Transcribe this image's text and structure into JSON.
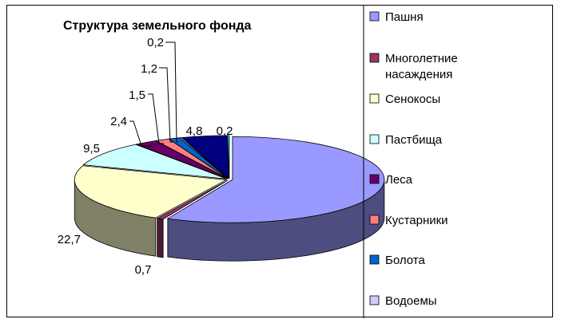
{
  "chart_data": {
    "type": "pie",
    "style": "3d-exploded",
    "title": "Структура земельного фонда",
    "legend_position": "right",
    "slices": [
      {
        "name": "Пашня",
        "value": 57.3,
        "color": "#9999ff"
      },
      {
        "name": "Многолетние насаждения",
        "value": 0.7,
        "color": "#993366"
      },
      {
        "name": "Сенокосы",
        "value": 22.7,
        "color": "#ffffcc"
      },
      {
        "name": "Пастбища",
        "value": 9.5,
        "color": "#ccffff"
      },
      {
        "name": "Леса",
        "value": 2.4,
        "color": "#660066"
      },
      {
        "name": "Кустарники",
        "value": 1.5,
        "color": "#ff8080"
      },
      {
        "name": "Болота",
        "value": 1.2,
        "color": "#0066cc"
      },
      {
        "name": "Водоемы",
        "value": 0.2,
        "color": "#ccccff"
      },
      {
        "name": "",
        "value": 4.8,
        "color": "#000080"
      },
      {
        "name": "",
        "value": 0.2,
        "color": "#00ccff"
      }
    ],
    "data_labels": [
      {
        "text": "0,7"
      },
      {
        "text": "22,7"
      },
      {
        "text": "9,5"
      },
      {
        "text": "2,4"
      },
      {
        "text": "1,5"
      },
      {
        "text": "1,2"
      },
      {
        "text": "0,2"
      },
      {
        "text": "4,8"
      },
      {
        "text": "0,2"
      }
    ]
  }
}
